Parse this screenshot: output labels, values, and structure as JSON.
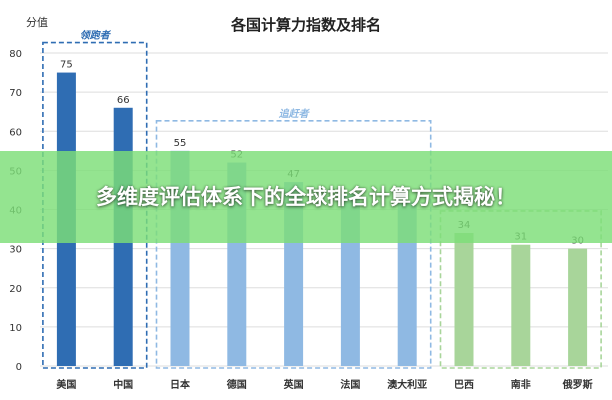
{
  "chart_data": {
    "type": "bar",
    "title": "各国计算力指数及排名",
    "ylabel": "分值",
    "ylim": [
      0,
      80
    ],
    "yticks": [
      0,
      10,
      20,
      30,
      40,
      50,
      60,
      70,
      80
    ],
    "categories": [
      "美国",
      "中国",
      "日本",
      "德国",
      "英国",
      "法国",
      "澳大利亚",
      "巴西",
      "南非",
      "俄罗斯"
    ],
    "values": [
      75,
      66,
      55,
      52,
      47,
      44,
      42,
      34,
      31,
      30
    ],
    "data_labels": [
      "75",
      "66",
      "55",
      "52",
      "47",
      "",
      "",
      "34",
      "31",
      "30"
    ],
    "groups": [
      {
        "label": "领跑者",
        "members": [
          0,
          1
        ],
        "color": "#2f6db3"
      },
      {
        "label": "追赶者",
        "members": [
          2,
          3,
          4,
          5,
          6
        ],
        "color": "#8fb9e3"
      },
      {
        "label": "",
        "members": [
          7,
          8,
          9
        ],
        "color": "#a8d59a"
      }
    ],
    "grid": true
  },
  "banner": {
    "text": "多维度评估体系下的全球排名计算方式揭秘！"
  }
}
